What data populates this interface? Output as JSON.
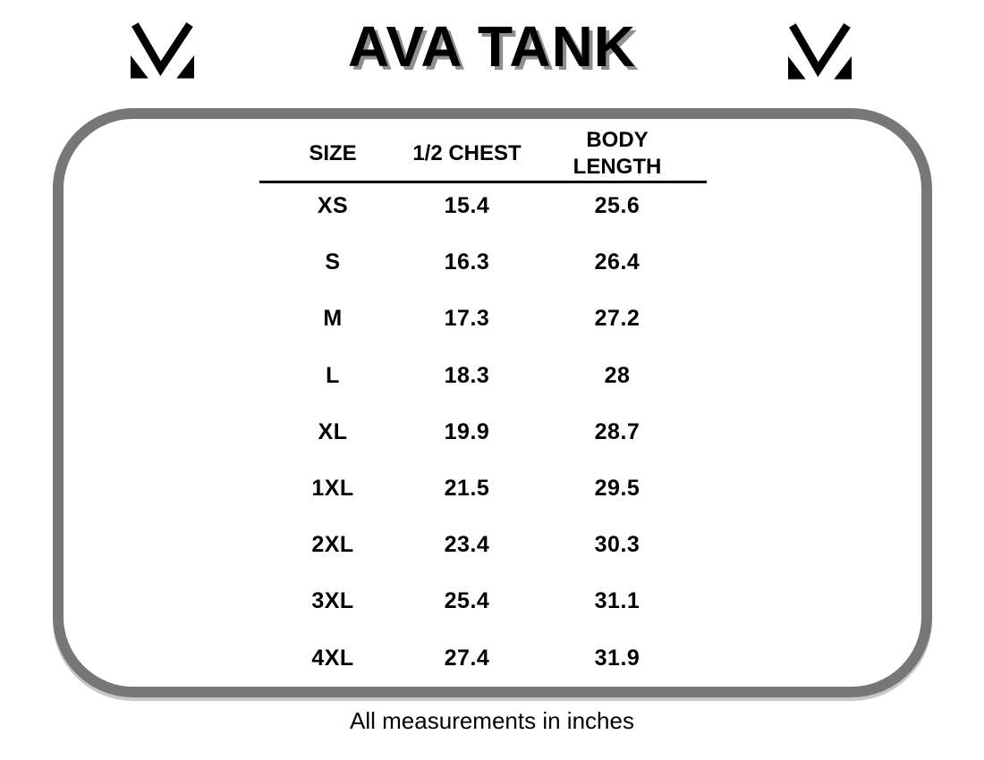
{
  "page": {
    "title": "AVA TANK",
    "footer": "All measurements in inches",
    "brand_logo_icon": "m-logo"
  },
  "colors": {
    "background": "#ffffff",
    "text": "#000000",
    "frame_border_gray": "#777777",
    "frame_shadow_gray": "#c8c8c8",
    "title_shadow_gray": "#8f8f8f"
  },
  "chart_data": {
    "type": "table",
    "title": "AVA TANK",
    "columns": [
      "SIZE",
      "1/2 CHEST",
      "BODY LENGTH"
    ],
    "rows": [
      [
        "XS",
        "15.4",
        "25.6"
      ],
      [
        "S",
        "16.3",
        "26.4"
      ],
      [
        "M",
        "17.3",
        "27.2"
      ],
      [
        "L",
        "18.3",
        "28"
      ],
      [
        "XL",
        "19.9",
        "28.7"
      ],
      [
        "1XL",
        "21.5",
        "29.5"
      ],
      [
        "2XL",
        "23.4",
        "30.3"
      ],
      [
        "3XL",
        "25.4",
        "31.1"
      ],
      [
        "4XL",
        "27.4",
        "31.9"
      ]
    ],
    "note": "All measurements in inches",
    "units": "inches",
    "layout": {
      "grid": false,
      "header_underline": true
    }
  }
}
